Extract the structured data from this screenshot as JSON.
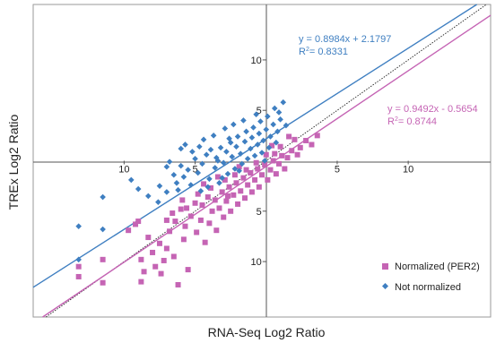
{
  "chart_data": {
    "type": "scatter",
    "xlabel": "RNA-Seq Log2 Ratio",
    "ylabel": "TREx Log2 Ratio",
    "xlim": [
      -16.4,
      15.8
    ],
    "ylim": [
      -15.5,
      15.5
    ],
    "x_ticks": [
      {
        "value": -10,
        "label": "10"
      },
      {
        "value": -5,
        "label": "5"
      },
      {
        "value": 5,
        "label": "5"
      },
      {
        "value": 10,
        "label": "10"
      }
    ],
    "y_ticks": [
      {
        "value": 10,
        "label": "10"
      },
      {
        "value": 5,
        "label": "5"
      },
      {
        "value": -5,
        "label": "5"
      },
      {
        "value": -10,
        "label": "10"
      }
    ],
    "grid": false,
    "legend_position": "bottom-right",
    "series": [
      {
        "name": "Not normalized",
        "color": "#3f7fc1",
        "marker": "diamond",
        "trendline": {
          "slope": 0.8984,
          "intercept": 2.1797
        },
        "equation": "y = 0.8984x + 2.1797",
        "r2_prefix": "R",
        "r2_sup": "2",
        "r2_value": "= 0.8331",
        "points": [
          [
            -13.2,
            -6.5
          ],
          [
            -13.2,
            -9.8
          ],
          [
            -11.5,
            -3.6
          ],
          [
            -11.5,
            -6.8
          ],
          [
            -9.5,
            -1.9
          ],
          [
            -9.0,
            -2.8
          ],
          [
            -8.3,
            -3.5
          ],
          [
            -7.5,
            -2.5
          ],
          [
            -7.6,
            -4.1
          ],
          [
            -7.0,
            -0.6
          ],
          [
            -7.0,
            -3.1
          ],
          [
            -6.5,
            -1.4
          ],
          [
            -6.3,
            -2.2
          ],
          [
            -6.0,
            -0.5
          ],
          [
            -5.8,
            -1.6
          ],
          [
            -5.5,
            -0.9
          ],
          [
            -5.3,
            -2.4
          ],
          [
            -5.0,
            0.2
          ],
          [
            -4.8,
            -1.2
          ],
          [
            -4.6,
            -3.0
          ],
          [
            -4.5,
            -0.3
          ],
          [
            -4.2,
            0.6
          ],
          [
            -4.0,
            -1.8
          ],
          [
            -3.9,
            1.1
          ],
          [
            -3.6,
            -0.7
          ],
          [
            -3.5,
            0.3
          ],
          [
            -3.3,
            -2.2
          ],
          [
            -3.2,
            1.3
          ],
          [
            -3.0,
            -0.2
          ],
          [
            -2.8,
            0.9
          ],
          [
            -2.7,
            -1.3
          ],
          [
            -2.5,
            1.8
          ],
          [
            -2.4,
            0.4
          ],
          [
            -2.2,
            -0.8
          ],
          [
            -2.1,
            1.4
          ],
          [
            -2.0,
            2.4
          ],
          [
            -1.8,
            0.7
          ],
          [
            -1.7,
            -0.3
          ],
          [
            -1.5,
            1.9
          ],
          [
            -1.4,
            2.9
          ],
          [
            -1.3,
            0.2
          ],
          [
            -1.1,
            1.2
          ],
          [
            -1.0,
            2.3
          ],
          [
            -0.9,
            3.3
          ],
          [
            -0.8,
            0.5
          ],
          [
            -0.6,
            1.6
          ],
          [
            -0.5,
            2.7
          ],
          [
            -0.4,
            3.9
          ],
          [
            -0.3,
            0.8
          ],
          [
            -0.2,
            2.0
          ],
          [
            0.0,
            3.1
          ],
          [
            0.1,
            4.4
          ],
          [
            0.2,
            1.3
          ],
          [
            0.3,
            2.4
          ],
          [
            0.5,
            3.6
          ],
          [
            0.6,
            5.2
          ],
          [
            0.7,
            1.8
          ],
          [
            0.8,
            2.9
          ],
          [
            1.0,
            4.1
          ],
          [
            1.2,
            5.8
          ],
          [
            -6.0,
            1.2
          ],
          [
            -5.2,
            0.9
          ],
          [
            -4.4,
            2.1
          ],
          [
            -3.7,
            2.5
          ],
          [
            -2.9,
            3.2
          ],
          [
            -2.3,
            3.6
          ],
          [
            -1.6,
            4.0
          ],
          [
            -0.7,
            4.6
          ],
          [
            -3.1,
            -1.7
          ],
          [
            -4.1,
            -2.6
          ],
          [
            -6.8,
            -0.1
          ],
          [
            -5.7,
            1.6
          ],
          [
            -1.9,
            -1.0
          ],
          [
            -0.1,
            0.0
          ],
          [
            1.4,
            3.5
          ],
          [
            0.9,
            4.8
          ],
          [
            -2.6,
            2.2
          ],
          [
            -3.4,
            0.0
          ],
          [
            -4.7,
            1.4
          ],
          [
            -6.2,
            -2.9
          ]
        ]
      },
      {
        "name": "Normalized (PER2)",
        "color": "#c564b4",
        "marker": "square",
        "trendline": {
          "slope": 0.9492,
          "intercept": -0.5654
        },
        "equation": "y = 0.9492x - 0.5654",
        "r2_prefix": "R",
        "r2_sup": "2",
        "r2_value": "= 0.8744",
        "points": [
          [
            -13.2,
            -10.5
          ],
          [
            -13.2,
            -11.5
          ],
          [
            -11.5,
            -12.1
          ],
          [
            -11.5,
            -9.8
          ],
          [
            -9.7,
            -6.9
          ],
          [
            -9.2,
            -6.3
          ],
          [
            -8.8,
            -9.8
          ],
          [
            -8.8,
            -12.0
          ],
          [
            -8.6,
            -11.0
          ],
          [
            -8.3,
            -7.6
          ],
          [
            -8.0,
            -9.1
          ],
          [
            -7.8,
            -10.5
          ],
          [
            -7.5,
            -8.2
          ],
          [
            -7.4,
            -11.2
          ],
          [
            -7.0,
            -5.9
          ],
          [
            -7.0,
            -8.7
          ],
          [
            -6.8,
            -7.0
          ],
          [
            -6.5,
            -9.5
          ],
          [
            -6.4,
            -6.0
          ],
          [
            -6.2,
            -12.3
          ],
          [
            -6.0,
            -4.8
          ],
          [
            -5.8,
            -7.8
          ],
          [
            -5.7,
            -6.5
          ],
          [
            -5.5,
            -10.8
          ],
          [
            -5.3,
            -5.5
          ],
          [
            -5.0,
            -4.2
          ],
          [
            -4.9,
            -7.1
          ],
          [
            -4.6,
            -5.9
          ],
          [
            -4.5,
            -4.4
          ],
          [
            -4.3,
            -8.1
          ],
          [
            -4.1,
            -3.6
          ],
          [
            -4.0,
            -6.2
          ],
          [
            -3.8,
            -5.0
          ],
          [
            -3.6,
            -3.9
          ],
          [
            -3.5,
            -6.9
          ],
          [
            -3.3,
            -4.7
          ],
          [
            -3.1,
            -3.1
          ],
          [
            -3.0,
            -5.6
          ],
          [
            -2.8,
            -4.0
          ],
          [
            -2.6,
            -2.6
          ],
          [
            -2.5,
            -5.0
          ],
          [
            -2.3,
            -3.4
          ],
          [
            -2.1,
            -2.2
          ],
          [
            -2.0,
            -4.3
          ],
          [
            -1.8,
            -3.0
          ],
          [
            -1.6,
            -1.7
          ],
          [
            -1.5,
            -3.7
          ],
          [
            -1.3,
            -2.4
          ],
          [
            -1.1,
            -1.2
          ],
          [
            -1.0,
            -3.1
          ],
          [
            -0.8,
            -1.9
          ],
          [
            -0.6,
            -0.8
          ],
          [
            -0.5,
            -2.6
          ],
          [
            -0.3,
            -1.4
          ],
          [
            -0.1,
            -0.4
          ],
          [
            0.1,
            -1.9
          ],
          [
            0.3,
            -0.9
          ],
          [
            0.5,
            0.0
          ],
          [
            0.7,
            -1.3
          ],
          [
            0.9,
            -0.3
          ],
          [
            1.1,
            0.5
          ],
          [
            1.3,
            -0.8
          ],
          [
            1.5,
            0.3
          ],
          [
            1.8,
            1.0
          ],
          [
            2.0,
            2.1
          ],
          [
            2.4,
            1.3
          ],
          [
            2.8,
            2.0
          ],
          [
            3.2,
            1.6
          ],
          [
            3.6,
            2.5
          ],
          [
            -5.6,
            -4.7
          ],
          [
            -4.8,
            -3.3
          ],
          [
            -3.9,
            -2.7
          ],
          [
            -2.9,
            -1.9
          ],
          [
            -2.2,
            -1.4
          ],
          [
            -1.4,
            -0.9
          ],
          [
            -0.7,
            -0.2
          ],
          [
            0.0,
            0.6
          ],
          [
            0.6,
            0.7
          ],
          [
            1.0,
            1.4
          ],
          [
            -6.6,
            -5.2
          ],
          [
            -7.2,
            -9.9
          ],
          [
            -9.0,
            -6.0
          ],
          [
            -5.9,
            -3.9
          ],
          [
            -4.4,
            -2.3
          ],
          [
            -3.4,
            -1.6
          ],
          [
            -1.9,
            -0.6
          ],
          [
            0.4,
            1.5
          ],
          [
            1.6,
            2.4
          ],
          [
            2.2,
            0.6
          ],
          [
            -2.7,
            -3.5
          ]
        ]
      }
    ]
  }
}
